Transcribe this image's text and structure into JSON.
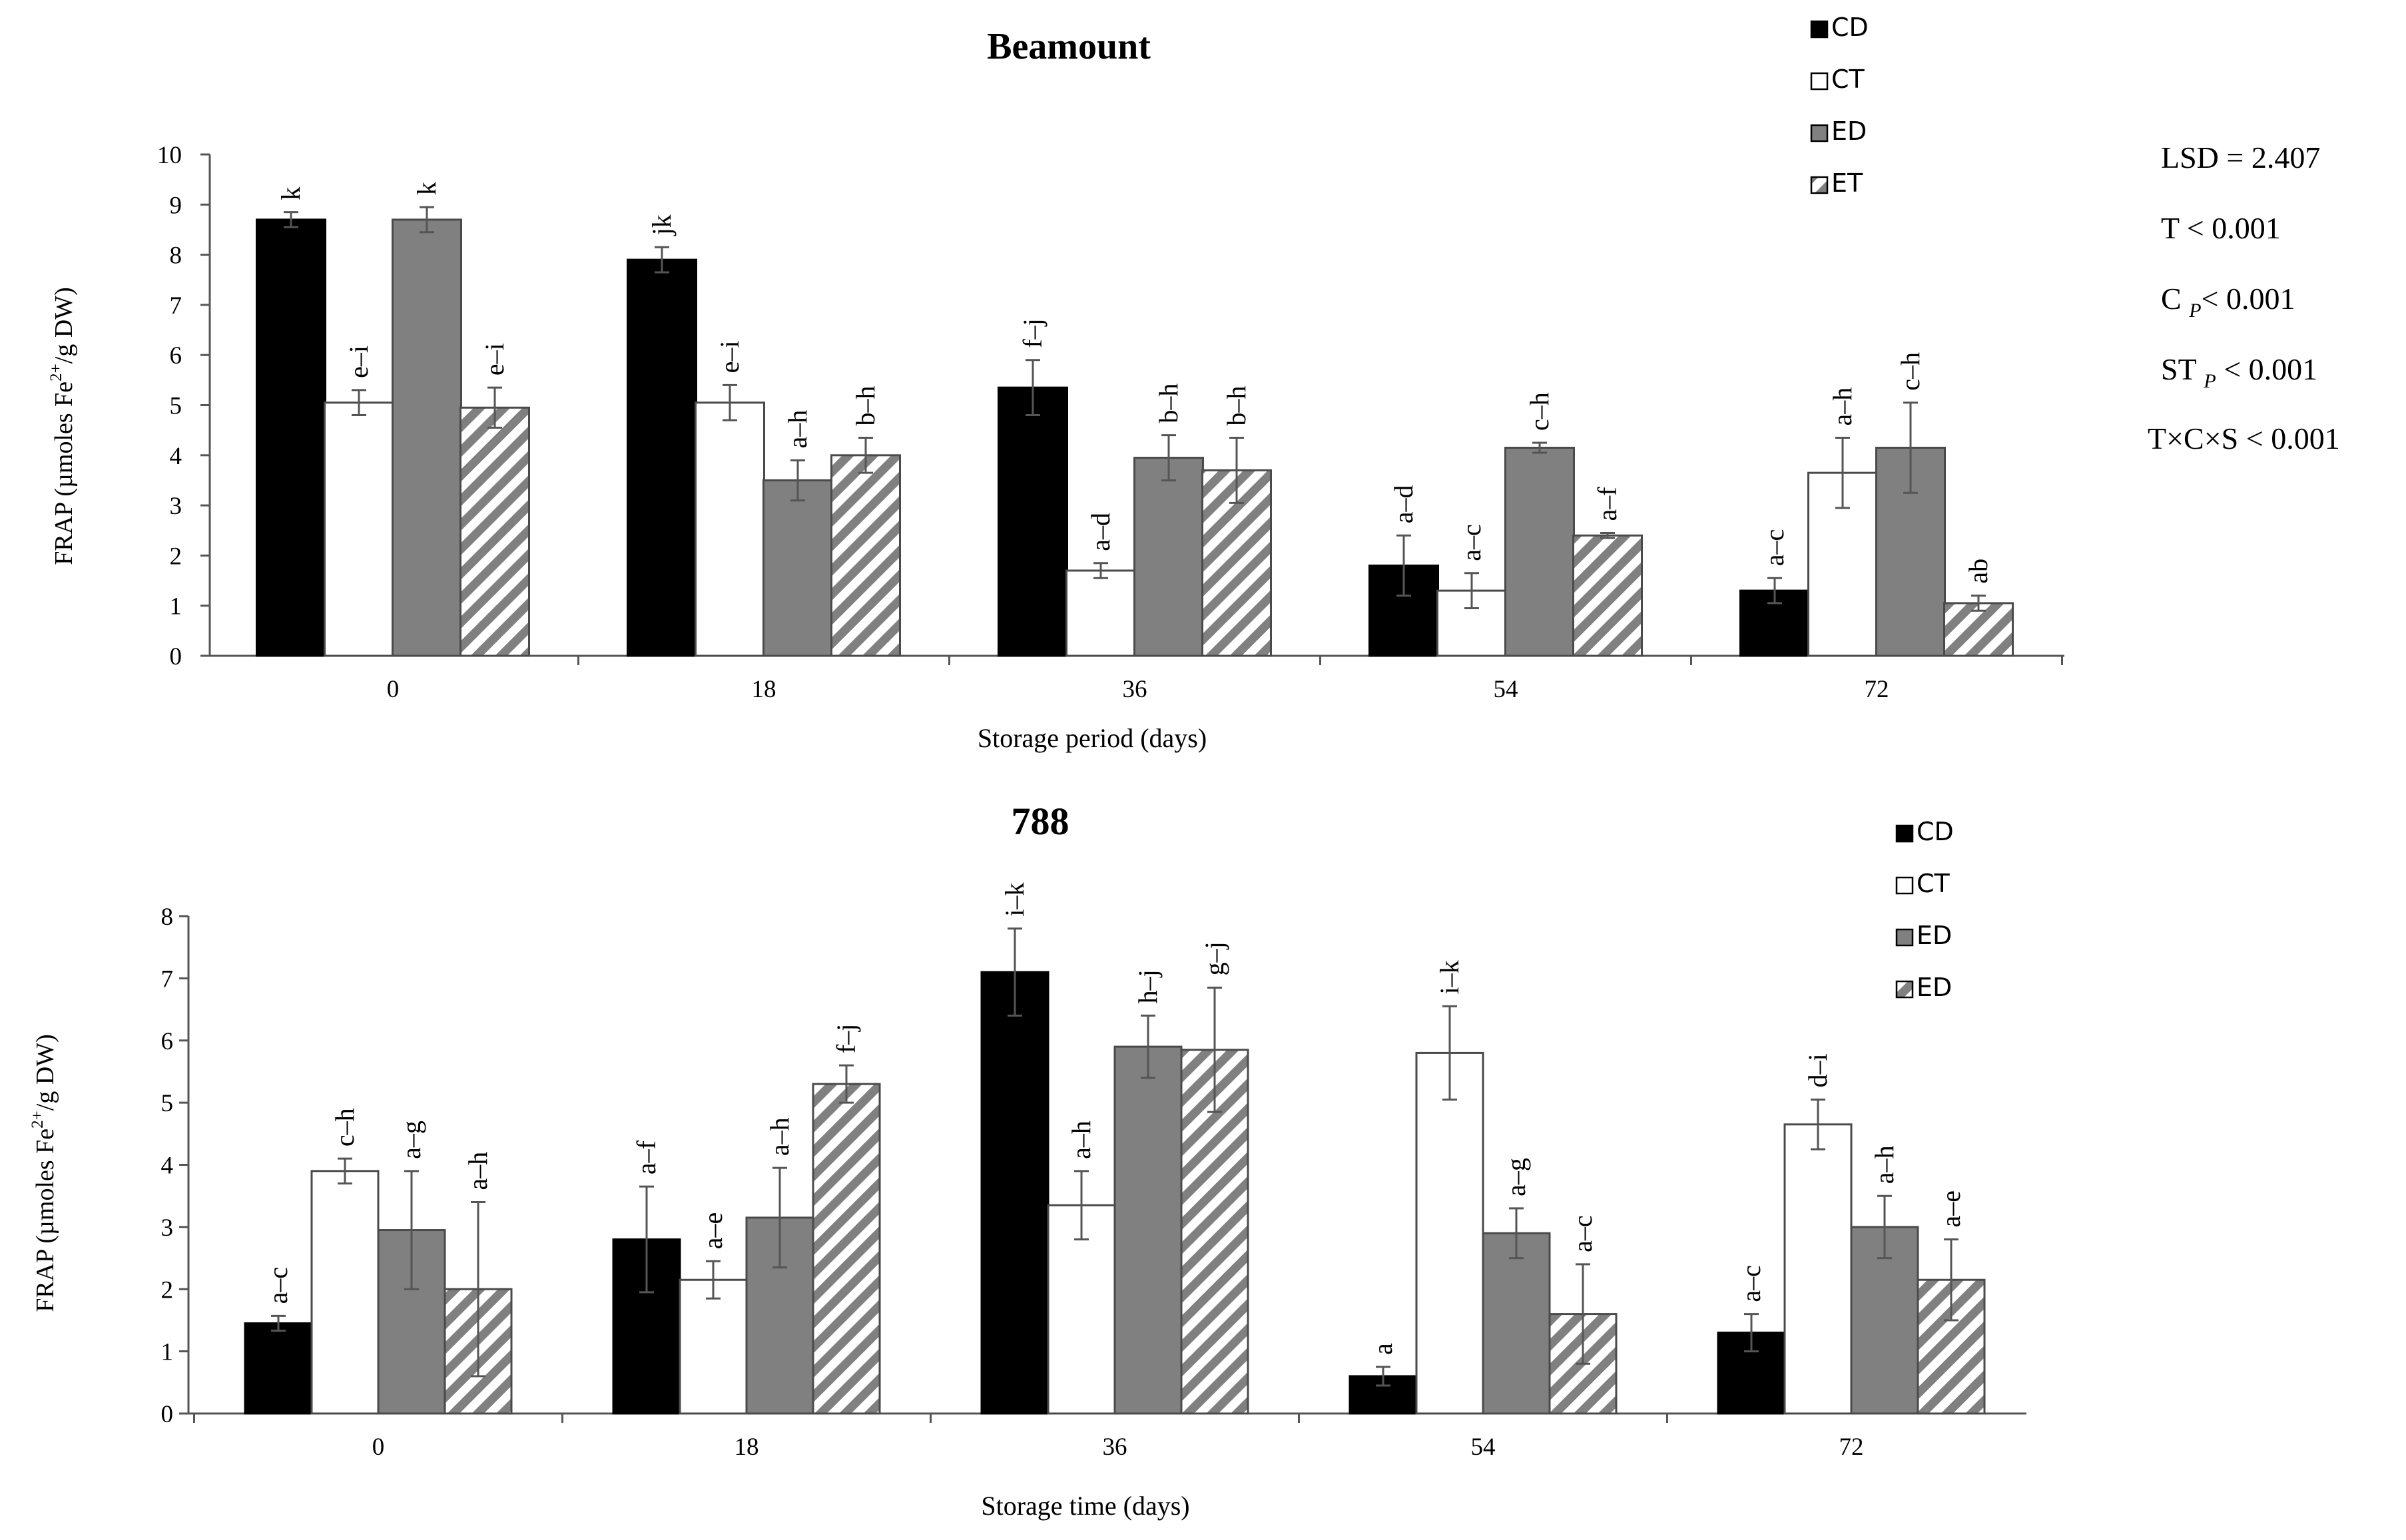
{
  "figure": {
    "stats": {
      "lsd": "LSD = 2.407",
      "t": "T < 0.001",
      "c_main": "C ",
      "c_sub": "P",
      "c_tail": "< 0.001",
      "st_main": "ST ",
      "st_sub": "P",
      "st_tail": " < 0.001",
      "txcxs": "T×C×S < 0.001"
    }
  },
  "colors": {
    "CD": "#000000",
    "CT": "#ffffff",
    "ED": "#808080",
    "hatch": "#808080",
    "axis": "#555555"
  },
  "chart_data": [
    {
      "type": "bar",
      "title": "Beamount",
      "xlabel": "Storage period (days)",
      "ylabel_main": "FRAP (µmoles Fe",
      "ylabel_sup": "2+",
      "ylabel_tail": "/g DW)",
      "ylim": [
        0,
        10
      ],
      "yticks": [
        0,
        1,
        2,
        3,
        4,
        5,
        6,
        7,
        8,
        9,
        10
      ],
      "categories": [
        "0",
        "18",
        "36",
        "54",
        "72"
      ],
      "legend_position": "top-right",
      "series": [
        {
          "name": "CD",
          "pattern": "solid-black",
          "values": [
            8.7,
            7.9,
            5.35,
            1.8,
            1.3
          ],
          "errors": [
            0.15,
            0.25,
            0.55,
            0.6,
            0.25
          ],
          "labels": [
            "k",
            "jk",
            "f–j",
            "a–d",
            "a–c"
          ]
        },
        {
          "name": "CT",
          "pattern": "white",
          "values": [
            5.05,
            5.05,
            1.7,
            1.3,
            3.65
          ],
          "errors": [
            0.25,
            0.35,
            0.15,
            0.35,
            0.7
          ],
          "labels": [
            "e–i",
            "e–i",
            "a–d",
            "a–c",
            "a–h"
          ]
        },
        {
          "name": "ED",
          "pattern": "solid-gray",
          "values": [
            8.7,
            3.5,
            3.95,
            4.15,
            4.15
          ],
          "errors": [
            0.25,
            0.4,
            0.45,
            0.1,
            0.9
          ],
          "labels": [
            "k",
            "a–h",
            "b–h",
            "c–h",
            "c–h"
          ]
        },
        {
          "name": "ET",
          "pattern": "hatched",
          "values": [
            4.95,
            4.0,
            3.7,
            2.4,
            1.05
          ],
          "errors": [
            0.4,
            0.35,
            0.65,
            0.05,
            0.15
          ],
          "labels": [
            "e–i",
            "b–h",
            "b–h",
            "a–f",
            "ab"
          ]
        }
      ]
    },
    {
      "type": "bar",
      "title": "788",
      "xlabel": "Storage time (days)",
      "ylabel_main": "FRAP (µmoles Fe",
      "ylabel_sup": "2+",
      "ylabel_tail": "/g DW)",
      "ylim": [
        0,
        8
      ],
      "yticks": [
        0,
        1,
        2,
        3,
        4,
        5,
        6,
        7,
        8
      ],
      "categories": [
        "0",
        "18",
        "36",
        "54",
        "72"
      ],
      "legend_position": "top-right",
      "series": [
        {
          "name": "CD",
          "pattern": "solid-black",
          "values": [
            1.45,
            2.8,
            7.1,
            0.6,
            1.3
          ],
          "errors": [
            0.12,
            0.85,
            0.7,
            0.15,
            0.3
          ],
          "labels": [
            "a–c",
            "a–f",
            "i–k",
            "a",
            "a–c"
          ]
        },
        {
          "name": "CT",
          "pattern": "white",
          "values": [
            3.9,
            2.15,
            3.35,
            5.8,
            4.65
          ],
          "errors": [
            0.2,
            0.3,
            0.55,
            0.75,
            0.4
          ],
          "labels": [
            "c–h",
            "a–e",
            "a–h",
            "i–k",
            "d–i"
          ]
        },
        {
          "name": "ED",
          "pattern": "solid-gray",
          "values": [
            2.95,
            3.15,
            5.9,
            2.9,
            3.0
          ],
          "errors": [
            0.95,
            0.8,
            0.5,
            0.4,
            0.5
          ],
          "labels": [
            "a–g",
            "a–h",
            "h–j",
            "a–g",
            "a–h"
          ]
        },
        {
          "name": "ED",
          "pattern": "hatched",
          "values": [
            2.0,
            5.3,
            5.85,
            1.6,
            2.15
          ],
          "errors": [
            1.4,
            0.3,
            1.0,
            0.8,
            0.65
          ],
          "labels": [
            "a–h",
            "f–j",
            "g–j",
            "a–c",
            "a–e"
          ]
        }
      ]
    }
  ]
}
